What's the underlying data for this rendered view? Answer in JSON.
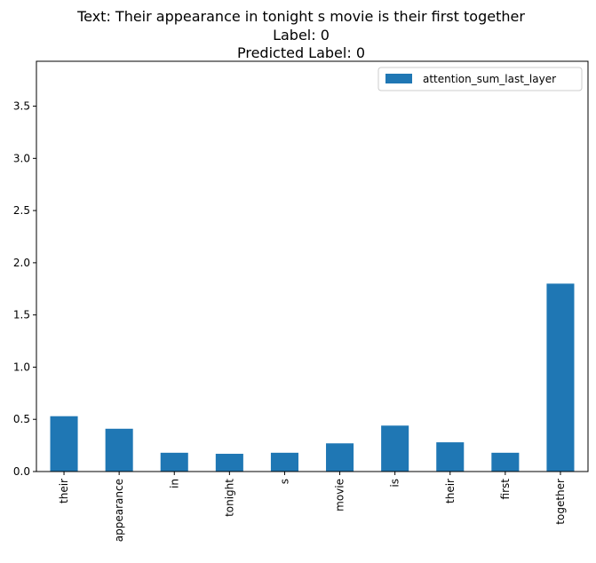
{
  "chart_data": {
    "type": "bar",
    "title_lines": [
      "Text: Their appearance in tonight s movie is their first together",
      "Label: 0",
      " Predicted Label: 0"
    ],
    "categories": [
      "their",
      "appearance",
      "in",
      "tonight",
      "s",
      "movie",
      "is",
      "their",
      "first",
      "together"
    ],
    "series": [
      {
        "name": "attention_sum_last_layer",
        "color": "#1f77b4",
        "values": [
          0.53,
          0.41,
          0.18,
          0.17,
          0.18,
          0.27,
          0.44,
          0.28,
          0.18,
          1.8
        ]
      }
    ],
    "yticks": [
      "0.0",
      "0.5",
      "1.0",
      "1.5",
      "2.0",
      "2.5",
      "3.0",
      "3.5"
    ],
    "ylim": [
      0,
      3.93
    ],
    "xlabel": "",
    "ylabel": "",
    "grid": false,
    "legend_position": "top-right"
  }
}
